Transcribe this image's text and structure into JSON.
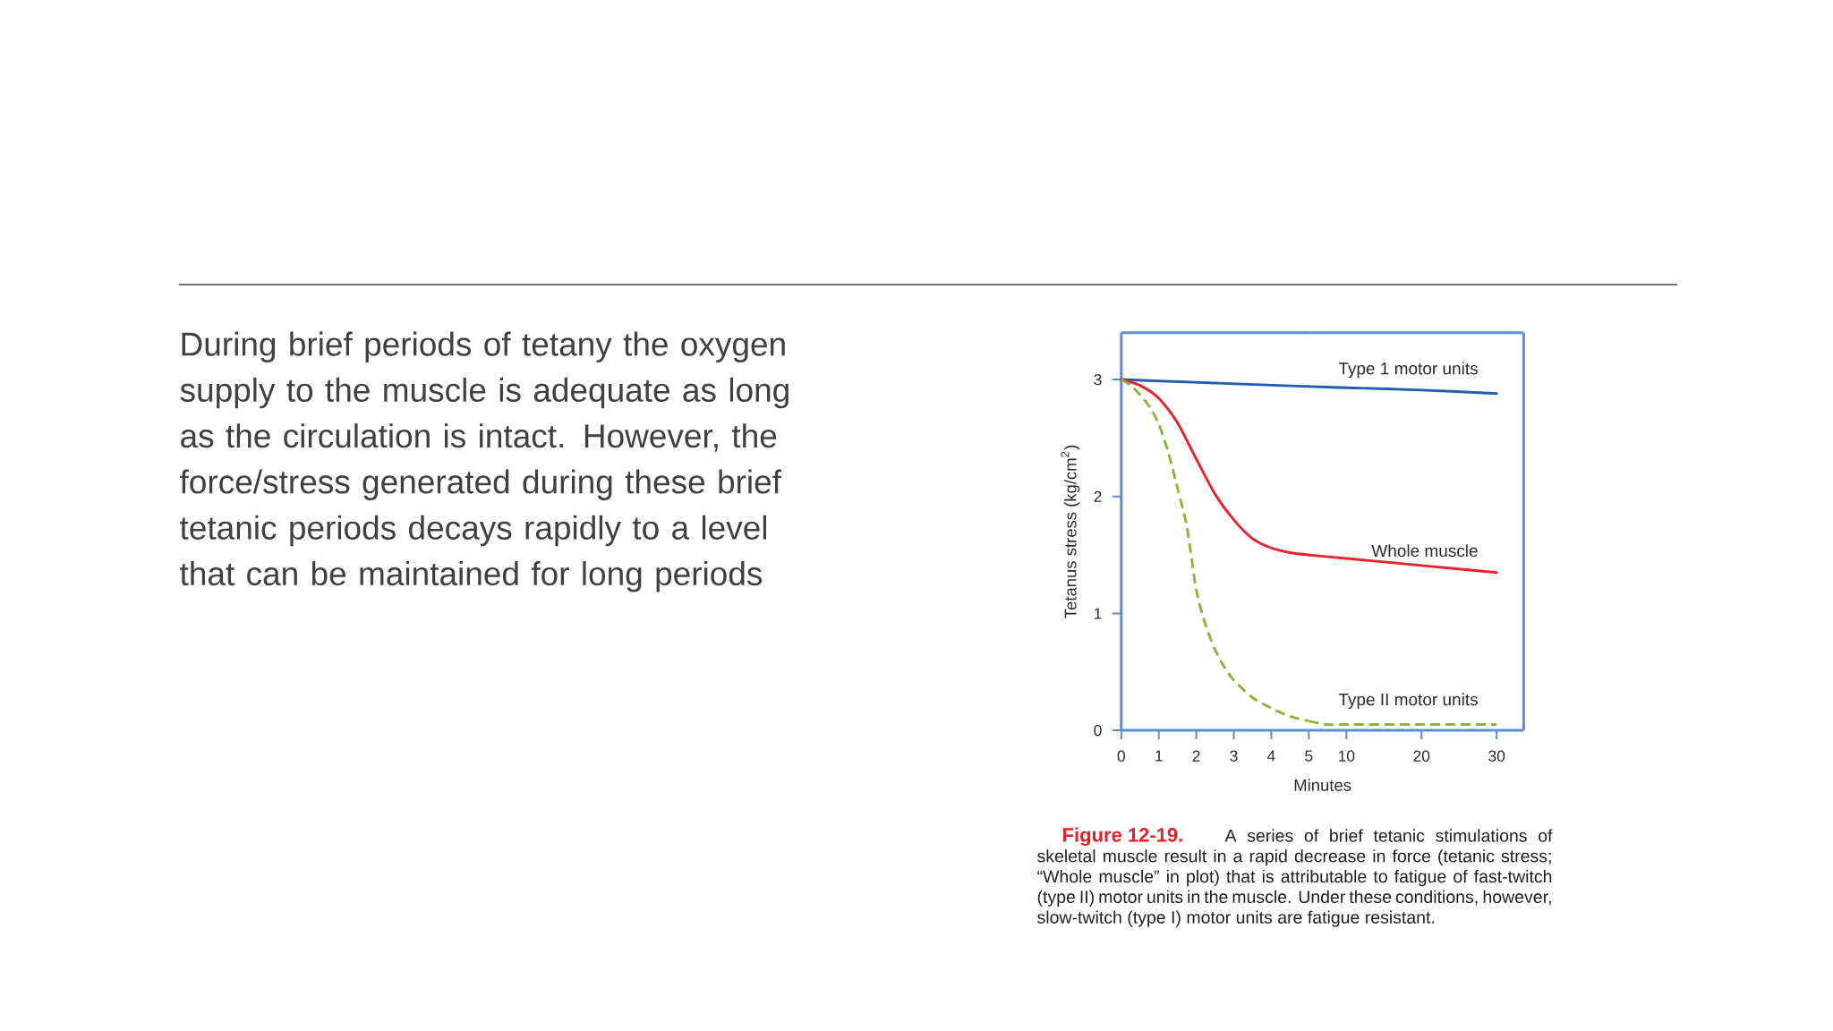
{
  "chart_data": [
    {
      "type": "line",
      "ylabel": "Tetanus stress (kg/cm$^{2}$)",
      "xlim": [
        0,
        5
      ],
      "ylim": [
        0,
        3.4
      ],
      "xticks": [
        0,
        1,
        2,
        3,
        4,
        5
      ],
      "yticks": [
        0,
        1,
        2,
        3
      ],
      "series": [
        {
          "color": "#1f5fae",
          "line_style": "solid",
          "x": [
            0,
            5
          ],
          "values": [
            3,
            2.94
          ]
        },
        {
          "color": "#e8212b",
          "line_style": "solid",
          "x": [
            0,
            0.5,
            1,
            1.5,
            2,
            2.5,
            3,
            3.5,
            4,
            4.5,
            5
          ],
          "values": [
            3,
            2.95,
            2.84,
            2.63,
            2.32,
            2.02,
            1.8,
            1.64,
            1.56,
            1.52,
            1.5
          ]
        },
        {
          "color": "#8cb33a",
          "line_style": "dashed",
          "x": [
            0,
            0.25,
            0.5,
            0.75,
            1,
            1.25,
            1.5,
            1.75,
            2,
            2.25,
            2.5,
            2.75,
            3,
            3.5,
            4,
            4.5,
            5
          ],
          "values": [
            3,
            2.95,
            2.87,
            2.77,
            2.62,
            2.38,
            2.07,
            1.74,
            1.2,
            0.9,
            0.69,
            0.54,
            0.43,
            0.28,
            0.19,
            0.12,
            0.08
          ]
        }
      ],
      "annotations": [
        "During brief periods of tetany the oxygen supply to the muscle is adequate as long as the circulation is intact. However, the force/stress generated during these brief tetanic periods decays rapidly to a level that can be maintained for long periods",
        "Figure 12-19.",
        "A series of brief tetanic stimulations of skeletal muscle result in a rapid decrease in force (tetanic stress; “Whole muscle” in plot) that is attributable to fatigue of fast-twitch (type II) motor units in the muscle. Under these conditions, however, slow-twitch (type I) motor units are fatigue resistant."
      ]
    },
    {
      "type": "line",
      "xlabel": "Minutes",
      "xlim": [
        5,
        33.6
      ],
      "ylim": [
        0,
        3.4
      ],
      "xticks": [
        10,
        20,
        30
      ],
      "tick_labels": "x",
      "series": [
        {
          "name": "Type 1 motor units",
          "color": "#1f5fae",
          "line_style": "solid",
          "x": [
            5,
            10,
            20,
            30
          ],
          "values": [
            2.94,
            2.93,
            2.91,
            2.88
          ]
        },
        {
          "name": "Whole muscle",
          "color": "#e8212b",
          "line_style": "solid",
          "x": [
            5,
            10,
            20,
            30
          ],
          "values": [
            1.5,
            1.47,
            1.41,
            1.35
          ]
        },
        {
          "name": "Type II motor units",
          "color": "#8cb33a",
          "line_style": "dashed",
          "x": [
            5,
            7.5,
            10,
            20,
            30
          ],
          "values": [
            0.08,
            0.05,
            0.05,
            0.05,
            0.05
          ]
        }
      ]
    }
  ]
}
